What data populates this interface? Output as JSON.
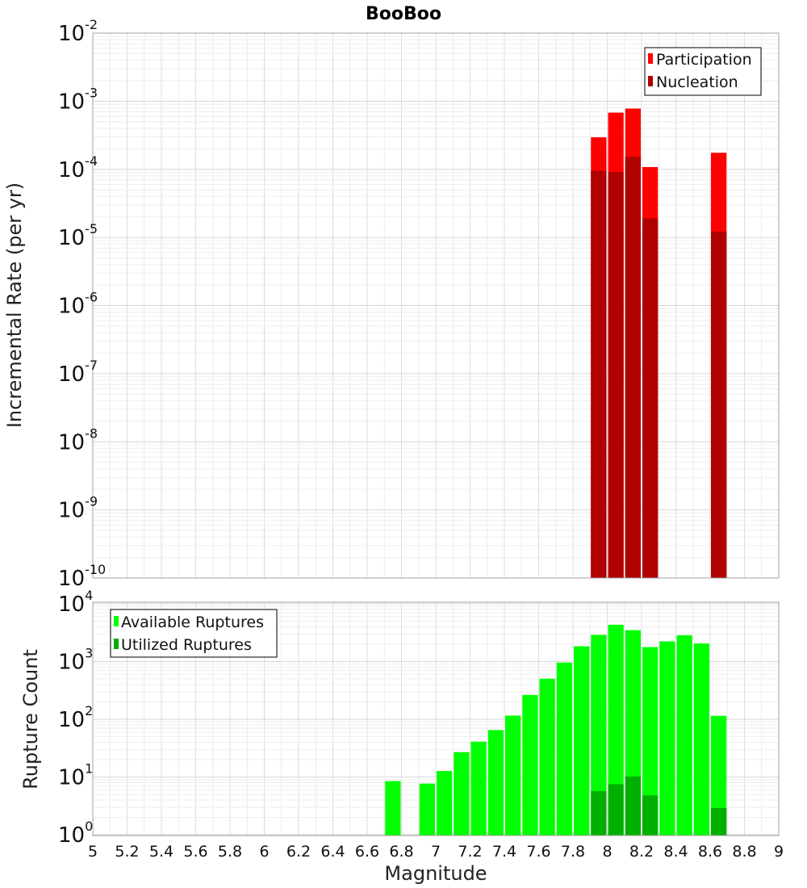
{
  "chart_data": [
    {
      "type": "bar",
      "title": "BooBoo",
      "xlabel": "",
      "ylabel": "Incremental Rate (per yr)",
      "yscale": "log",
      "ylim_exponents": [
        -10,
        -2
      ],
      "xlim": [
        5,
        9
      ],
      "bin_width": 0.1,
      "legend_position": "top-right",
      "series": [
        {
          "name": "Participation",
          "color": "#ff0000",
          "x": [
            7.95,
            8.05,
            8.15,
            8.25,
            8.65
          ],
          "values": [
            0.000295,
            0.00068,
            0.00078,
            0.000108,
            0.000175
          ]
        },
        {
          "name": "Nucleation",
          "color": "#b00000",
          "x": [
            7.95,
            8.05,
            8.15,
            8.25,
            8.65
          ],
          "values": [
            9.5e-05,
            9.1e-05,
            0.000153,
            1.91e-05,
            1.22e-05
          ]
        }
      ]
    },
    {
      "type": "bar",
      "title": "",
      "xlabel": "Magnitude",
      "ylabel": "Rupture Count",
      "yscale": "log",
      "ylim_exponents": [
        0,
        4
      ],
      "xlim": [
        5,
        9
      ],
      "bin_width": 0.1,
      "legend_position": "top-left",
      "series": [
        {
          "name": "Available Ruptures",
          "color": "#00ff00",
          "x": [
            6.75,
            6.95,
            7.05,
            7.15,
            7.25,
            7.35,
            7.45,
            7.55,
            7.65,
            7.75,
            7.85,
            7.95,
            8.05,
            8.15,
            8.25,
            8.35,
            8.45,
            8.55,
            8.65
          ],
          "values": [
            8.5,
            7.7,
            12.7,
            27,
            41,
            65,
            116,
            264,
            505,
            960,
            1840,
            2900,
            4350,
            3500,
            1780,
            2240,
            2860,
            2060,
            115
          ]
        },
        {
          "name": "Utilized Ruptures",
          "color": "#00b000",
          "x": [
            7.95,
            8.05,
            8.15,
            8.25,
            8.65
          ],
          "values": [
            5.7,
            7.5,
            10.2,
            4.8,
            2.9
          ]
        }
      ]
    }
  ],
  "x_ticks": [
    "5",
    "5.2",
    "5.4",
    "5.6",
    "5.8",
    "6",
    "6.2",
    "6.4",
    "6.6",
    "6.8",
    "7",
    "7.2",
    "7.4",
    "7.6",
    "7.8",
    "8",
    "8.2",
    "8.4",
    "8.6",
    "8.8",
    "9"
  ],
  "top_y_ticks": [
    {
      "base": "10",
      "exp": "-2"
    },
    {
      "base": "10",
      "exp": "-3"
    },
    {
      "base": "10",
      "exp": "-4"
    },
    {
      "base": "10",
      "exp": "-5"
    },
    {
      "base": "10",
      "exp": "-6"
    },
    {
      "base": "10",
      "exp": "-7"
    },
    {
      "base": "10",
      "exp": "-8"
    },
    {
      "base": "10",
      "exp": "-9"
    },
    {
      "base": "10",
      "exp": "-10"
    }
  ],
  "bottom_y_ticks": [
    {
      "base": "10",
      "exp": "4"
    },
    {
      "base": "10",
      "exp": "3"
    },
    {
      "base": "10",
      "exp": "2"
    },
    {
      "base": "10",
      "exp": "1"
    },
    {
      "base": "10",
      "exp": "0"
    }
  ]
}
